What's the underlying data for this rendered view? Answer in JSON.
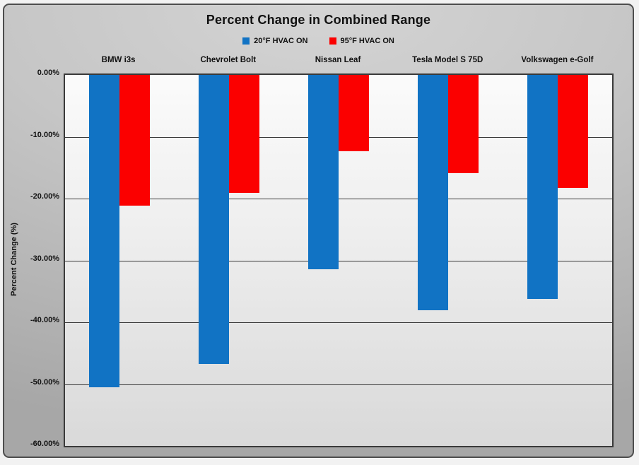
{
  "title": "Percent Change in Combined Range",
  "legend": {
    "items": [
      {
        "label": "20°F HVAC ON",
        "color": "#1173c4"
      },
      {
        "label": "95°F HVAC ON",
        "color": "#fb0000"
      }
    ]
  },
  "y_axis": {
    "title": "Percent Change (%)",
    "tick_labels": [
      "0.00%",
      "-10.00%",
      "-20.00%",
      "-30.00%",
      "-40.00%",
      "-50.00%",
      "-60.00%"
    ]
  },
  "chart_data": {
    "type": "bar",
    "title": "Percent Change in Combined Range",
    "categories": [
      "BMW i3s",
      "Chevrolet Bolt",
      "Nissan Leaf",
      "Tesla Model S 75D",
      "Volkswagen e-Golf"
    ],
    "series": [
      {
        "name": "20°F HVAC ON",
        "color": "#1173c4",
        "values": [
          -50.5,
          -46.7,
          -31.4,
          -38.0,
          -36.2
        ]
      },
      {
        "name": "95°F HVAC ON",
        "color": "#fb0000",
        "values": [
          -21.1,
          -19.1,
          -12.3,
          -15.9,
          -18.3
        ]
      }
    ],
    "ylabel": "Percent Change (%)",
    "xlabel": "",
    "ylim": [
      0,
      -60
    ],
    "grid": true,
    "gridline_step": -10,
    "legend_position": "top",
    "colors": {
      "gridline": "#3a3a3a",
      "plot_bg_top": "#fbfbfb",
      "plot_bg_bottom": "#d9d9d9",
      "panel_bg": "#bdbdbd"
    }
  }
}
